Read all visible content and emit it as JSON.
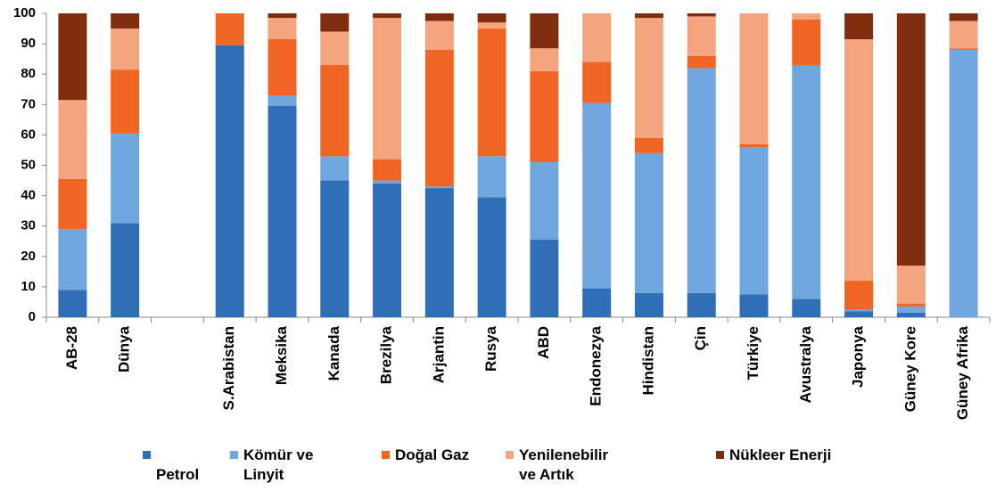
{
  "chart_data": {
    "type": "stacked_bar",
    "categories": [
      "AB-28",
      "Dünya",
      null,
      "S.Arabistan",
      "Meksika",
      "Kanada",
      "Brezilya",
      "Arjantin",
      "Rusya",
      "ABD",
      "Endonezya",
      "Hindistan",
      "Çin",
      "Türkiye",
      "Avustralya",
      "Japonya",
      "Güney Kore",
      "Güney Afrika"
    ],
    "series": [
      {
        "name": "Petrol",
        "color": "#2e6fb7",
        "values": [
          9,
          31,
          null,
          89.5,
          69.5,
          45,
          44,
          42.5,
          39.5,
          25.5,
          9.5,
          8,
          8,
          7.5,
          6,
          2,
          1.5,
          0
        ]
      },
      {
        "name": "Kömür ve Linyit",
        "color": "#6fa6de",
        "values": [
          20,
          29.5,
          null,
          0,
          3.5,
          8,
          1,
          0.5,
          13.5,
          25.5,
          61,
          46,
          74,
          48.5,
          77,
          0.5,
          2,
          88
        ]
      },
      {
        "name": "Doğal Gaz",
        "color": "#f06424",
        "values": [
          16.5,
          21,
          null,
          10.5,
          18.5,
          30,
          7,
          45,
          42,
          30,
          13.5,
          5,
          4,
          1,
          15,
          9.5,
          1,
          0.5
        ]
      },
      {
        "name": "Yenilenebilir ve Artık",
        "color": "#f4a57e",
        "values": [
          26,
          13.5,
          null,
          0,
          7,
          11,
          46.5,
          9.5,
          2,
          7.5,
          16,
          39.5,
          13,
          43,
          2,
          79.5,
          12.5,
          9
        ]
      },
      {
        "name": "Nükleer Enerji",
        "color": "#7f2d0e",
        "values": [
          28.5,
          5,
          null,
          0,
          1.5,
          6,
          1.5,
          2.5,
          3,
          11.5,
          0,
          1.5,
          1,
          0,
          0,
          8.5,
          83,
          2.5
        ]
      }
    ],
    "ylim": [
      0,
      100
    ],
    "yticks": [
      0,
      10,
      20,
      30,
      40,
      50,
      60,
      70,
      80,
      90,
      100
    ],
    "grid": false
  }
}
